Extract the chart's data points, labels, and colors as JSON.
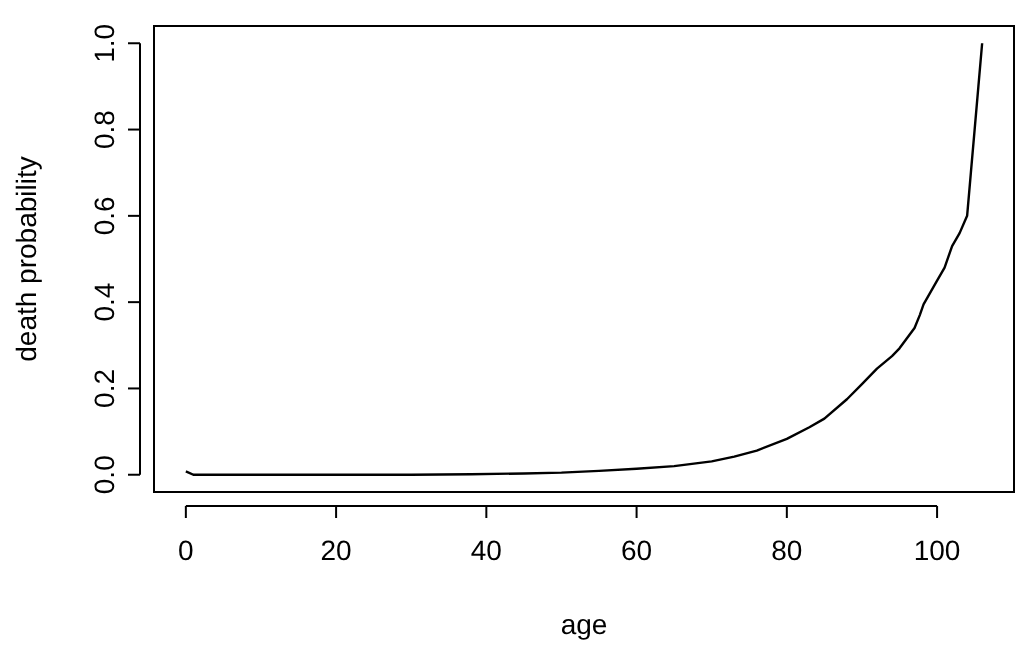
{
  "chart_data": {
    "type": "line",
    "xlabel": "age",
    "ylabel": "death probability",
    "x": [
      0,
      1,
      10,
      20,
      30,
      38,
      45,
      50,
      55,
      60,
      65,
      70,
      73,
      76,
      80,
      83,
      85,
      88,
      90,
      92,
      94,
      95,
      97,
      97.7,
      98.2,
      100,
      101,
      102,
      103,
      104,
      104.5,
      105,
      105.5,
      106
    ],
    "series": [
      {
        "color": "#000000",
        "values": [
          0.008,
          0.0,
          0.0,
          0.0,
          0.0,
          0.001,
          0.003,
          0.005,
          0.009,
          0.014,
          0.02,
          0.031,
          0.042,
          0.056,
          0.083,
          0.11,
          0.13,
          0.175,
          0.21,
          0.246,
          0.275,
          0.293,
          0.34,
          0.37,
          0.395,
          0.45,
          0.48,
          0.53,
          0.56,
          0.6,
          0.7,
          0.8,
          0.9,
          1.0
        ]
      }
    ],
    "xlim": [
      -4.24,
      110.24
    ],
    "ylim": [
      -0.04,
      1.04
    ],
    "xticks": [
      0,
      20,
      40,
      60,
      80,
      100
    ],
    "yticks": [
      {
        "value": 0,
        "label": "0.0"
      },
      {
        "value": 0.2,
        "label": "0.2"
      },
      {
        "value": 0.4,
        "label": "0.4"
      },
      {
        "value": 0.6,
        "label": "0.6"
      },
      {
        "value": 0.8,
        "label": "0.8"
      },
      {
        "value": 1,
        "label": "1.0"
      }
    ],
    "grid": false,
    "marker": "none",
    "line_style": "solid"
  }
}
